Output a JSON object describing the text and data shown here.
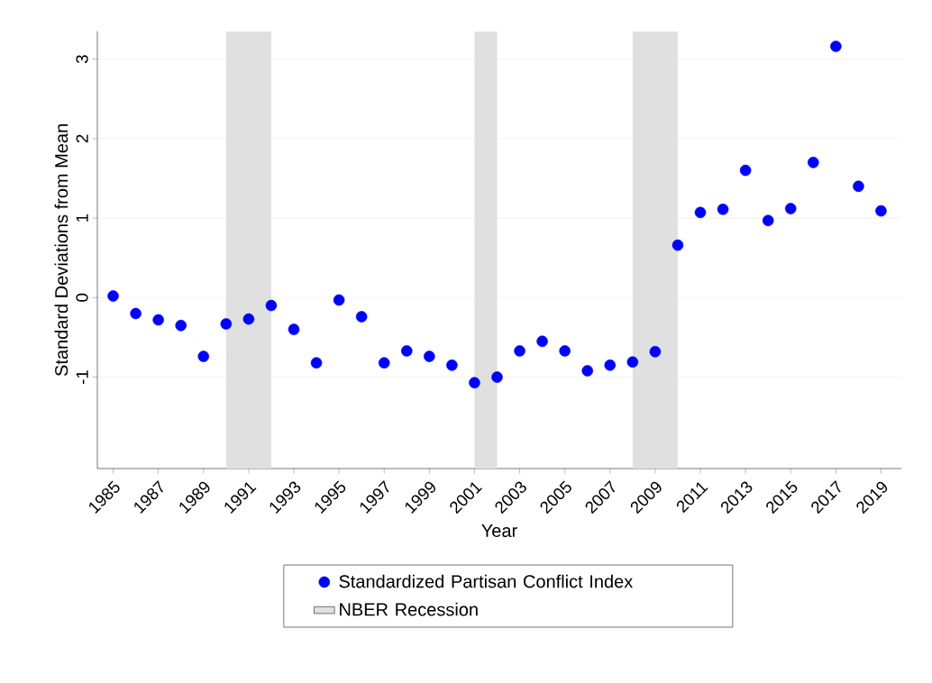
{
  "chart_data": {
    "type": "scatter",
    "xlabel": "Year",
    "ylabel": "Standard Deviations from Mean",
    "x": [
      1985,
      1986,
      1987,
      1988,
      1989,
      1990,
      1991,
      1992,
      1993,
      1994,
      1995,
      1996,
      1997,
      1998,
      1999,
      2000,
      2001,
      2002,
      2003,
      2004,
      2005,
      2006,
      2007,
      2008,
      2009,
      2010,
      2011,
      2012,
      2013,
      2014,
      2015,
      2016,
      2017,
      2018,
      2019
    ],
    "series": [
      {
        "name": "Standardized Partisan Conflict Index",
        "color": "#0000ff",
        "values": [
          0.02,
          -0.2,
          -0.28,
          -0.35,
          -0.74,
          -0.33,
          -0.27,
          -0.1,
          -0.4,
          -0.82,
          -0.03,
          -0.24,
          -0.82,
          -0.67,
          -0.74,
          -0.85,
          -1.07,
          -1.0,
          -0.67,
          -0.55,
          -0.67,
          -0.92,
          -0.85,
          -0.81,
          -0.68,
          0.66,
          1.07,
          1.11,
          1.6,
          0.97,
          1.12,
          1.7,
          3.16,
          1.4,
          1.09
        ]
      }
    ],
    "bands": [
      {
        "axis": "x",
        "from": 1990,
        "to": 1992,
        "label": "NBER Recession",
        "color": "#e0e0e0"
      },
      {
        "axis": "x",
        "from": 2001,
        "to": 2002,
        "color": "#e0e0e0"
      },
      {
        "axis": "x",
        "from": 2008,
        "to": 2010,
        "color": "#e0e0e0"
      }
    ],
    "xlim": [
      1984.3,
      2019.9
    ],
    "ylim": [
      -2.15,
      3.35
    ],
    "xticks": [
      1985,
      1987,
      1989,
      1991,
      1993,
      1995,
      1997,
      1999,
      2001,
      2003,
      2005,
      2007,
      2009,
      2011,
      2013,
      2015,
      2017,
      2019
    ],
    "yticks": [
      -1,
      0,
      1,
      2,
      3
    ],
    "grid": "y",
    "legend": "bottom"
  }
}
